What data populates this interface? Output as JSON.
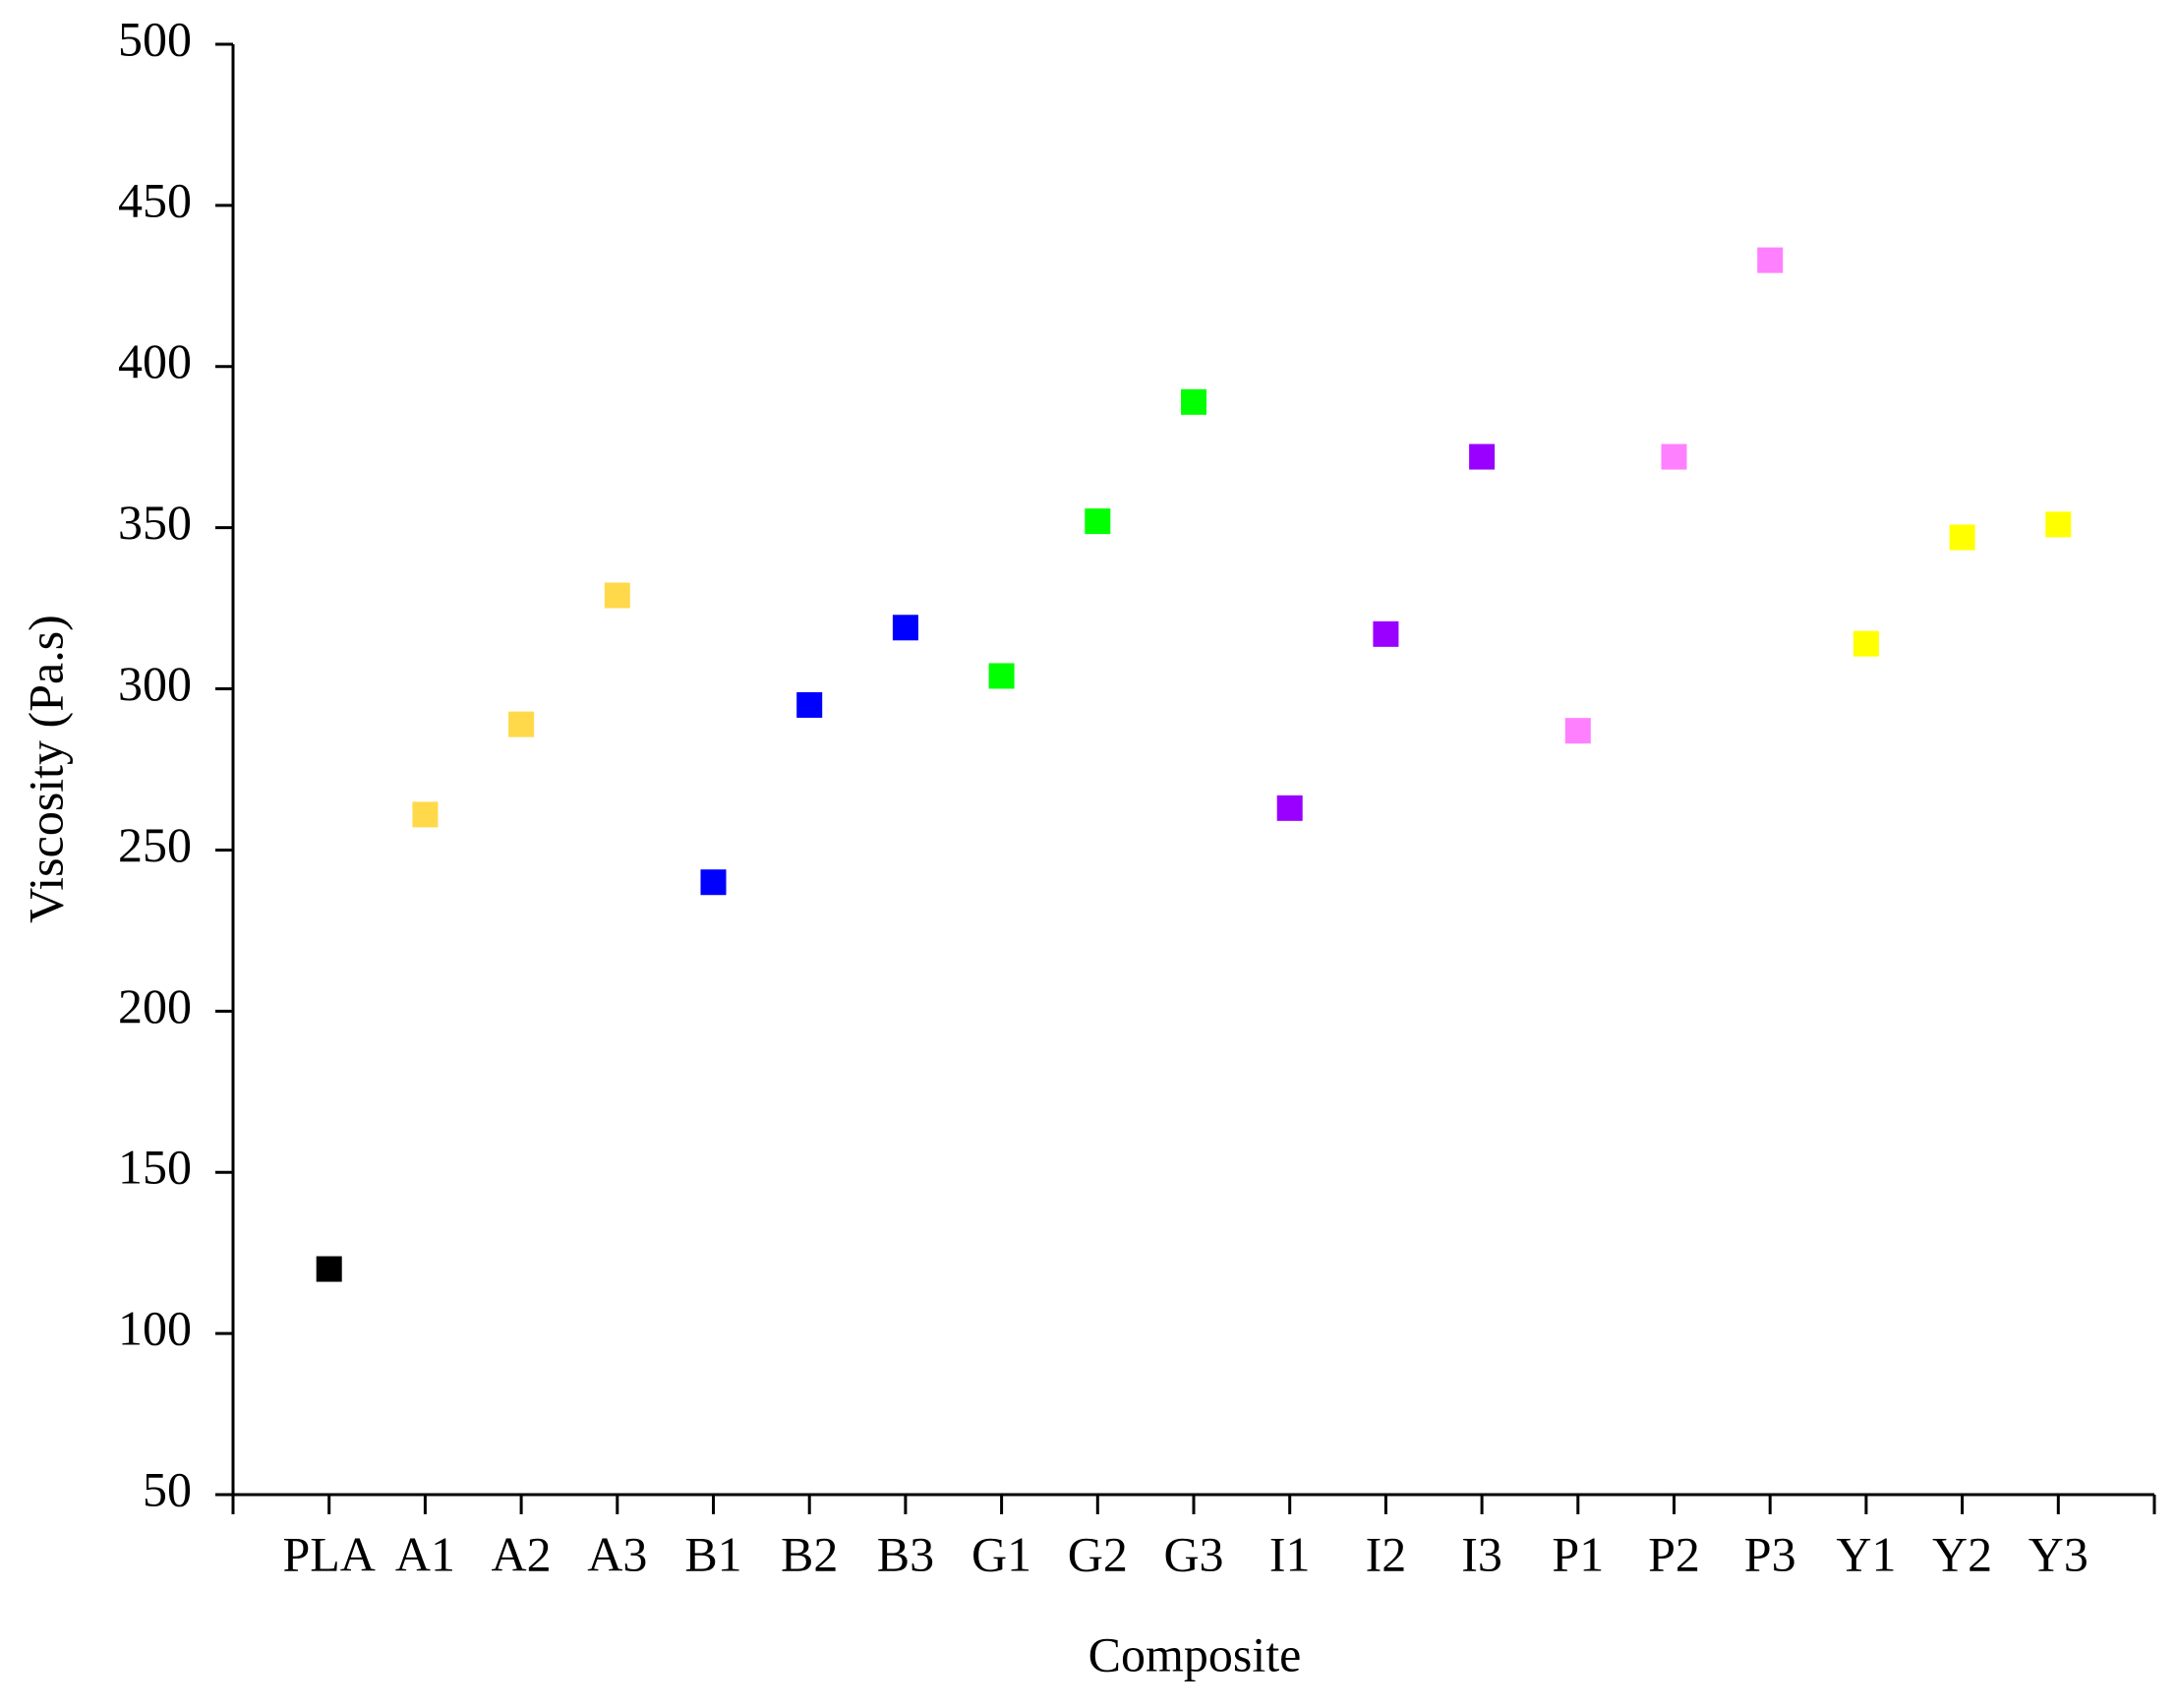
{
  "chart_data": {
    "type": "scatter",
    "x_label": "Composite",
    "y_label": "Viscosity (Pa.s)",
    "categories": [
      "PLA",
      "A1",
      "A2",
      "A3",
      "B1",
      "B2",
      "B3",
      "G1",
      "G2",
      "G3",
      "I1",
      "I2",
      "I3",
      "P1",
      "P2",
      "P3",
      "Y1",
      "Y2",
      "Y3"
    ],
    "values": [
      120,
      261,
      289,
      329,
      240,
      295,
      319,
      304,
      352,
      389,
      263,
      317,
      372,
      287,
      372,
      433,
      314,
      347,
      351
    ],
    "colors": [
      "#000000",
      "#ffd94a",
      "#ffd94a",
      "#ffd94a",
      "#0000ff",
      "#0000ff",
      "#0000ff",
      "#00ff00",
      "#00ff00",
      "#00ff00",
      "#9900ff",
      "#9900ff",
      "#9900ff",
      "#ff80ff",
      "#ff80ff",
      "#ff80ff",
      "#ffff00",
      "#ffff00",
      "#ffff00"
    ],
    "ylim": [
      50,
      500
    ],
    "yticks": [
      50,
      100,
      150,
      200,
      250,
      300,
      350,
      400,
      450,
      500
    ],
    "grid": false
  }
}
